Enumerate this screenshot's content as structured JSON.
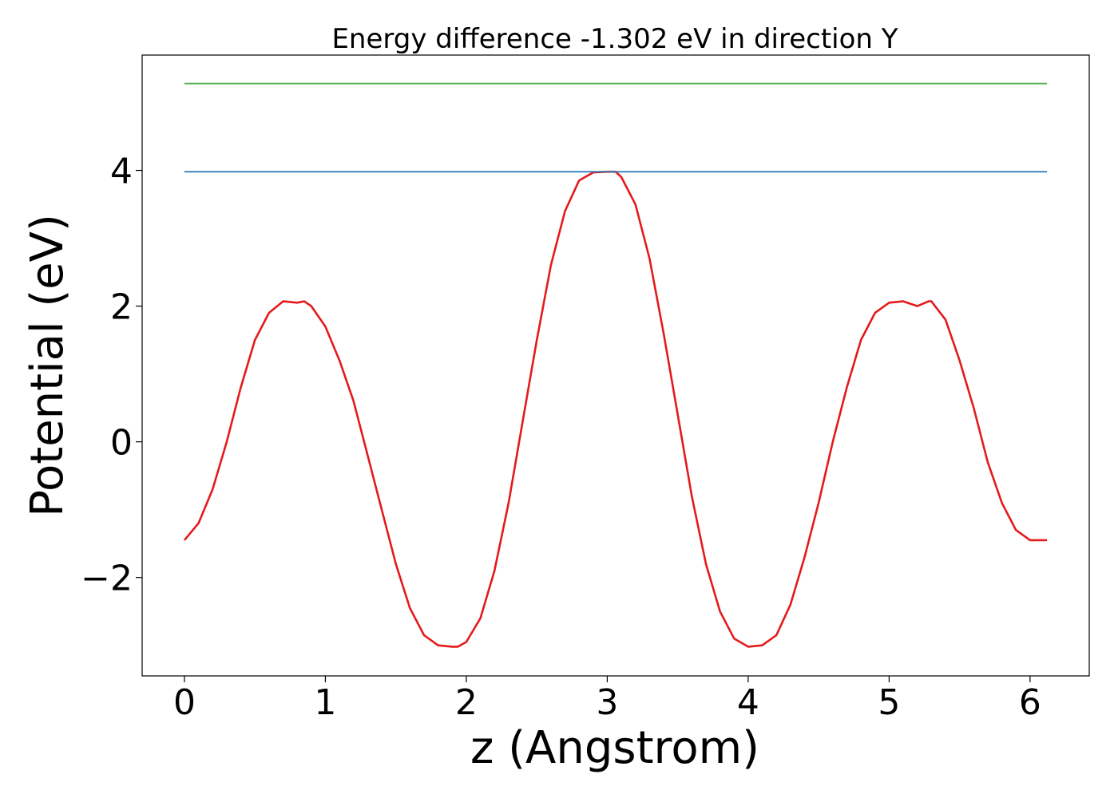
{
  "chart_data": {
    "type": "line",
    "title": "Energy difference -1.302 eV in direction Y",
    "xlabel": "z (Angstrom)",
    "ylabel": "Potential (eV)",
    "xlim": [
      -0.3,
      6.42
    ],
    "ylim": [
      -3.45,
      5.7
    ],
    "xticks": [
      0,
      1,
      2,
      3,
      4,
      5,
      6
    ],
    "xtick_labels": [
      "0",
      "1",
      "2",
      "3",
      "4",
      "5",
      "6"
    ],
    "yticks": [
      -2,
      0,
      2,
      4
    ],
    "ytick_labels": [
      "−2",
      "0",
      "2",
      "4"
    ],
    "grid": false,
    "legend": "none",
    "series": [
      {
        "color": "#e41a1c",
        "x": [
          0.0,
          0.1,
          0.2,
          0.3,
          0.4,
          0.5,
          0.6,
          0.7,
          0.8,
          0.85,
          0.9,
          1.0,
          1.1,
          1.2,
          1.3,
          1.4,
          1.5,
          1.6,
          1.7,
          1.8,
          1.9,
          1.94,
          2.0,
          2.1,
          2.2,
          2.3,
          2.4,
          2.5,
          2.6,
          2.7,
          2.8,
          2.9,
          3.0,
          3.06,
          3.1,
          3.2,
          3.3,
          3.4,
          3.5,
          3.6,
          3.7,
          3.8,
          3.9,
          4.0,
          4.1,
          4.2,
          4.3,
          4.4,
          4.5,
          4.6,
          4.7,
          4.8,
          4.9,
          5.0,
          5.1,
          5.2,
          5.28,
          5.3,
          5.4,
          5.5,
          5.6,
          5.7,
          5.8,
          5.9,
          6.0,
          6.12
        ],
        "y": [
          -1.45,
          -1.2,
          -0.7,
          0.0,
          0.8,
          1.5,
          1.9,
          2.07,
          2.05,
          2.07,
          2.0,
          1.7,
          1.2,
          0.6,
          -0.2,
          -1.0,
          -1.8,
          -2.45,
          -2.85,
          -3.0,
          -3.02,
          -3.02,
          -2.95,
          -2.6,
          -1.9,
          -0.9,
          0.3,
          1.5,
          2.6,
          3.4,
          3.85,
          3.97,
          3.98,
          3.98,
          3.9,
          3.5,
          2.7,
          1.6,
          0.4,
          -0.8,
          -1.8,
          -2.5,
          -2.9,
          -3.02,
          -3.0,
          -2.85,
          -2.4,
          -1.7,
          -0.9,
          0.0,
          0.8,
          1.5,
          1.9,
          2.05,
          2.07,
          2.0,
          2.07,
          2.07,
          1.8,
          1.2,
          0.5,
          -0.3,
          -0.9,
          -1.3,
          -1.45,
          -1.45
        ]
      },
      {
        "color": "#377eb8",
        "x": [
          0.0,
          6.12
        ],
        "y": [
          3.98,
          3.98
        ]
      },
      {
        "color": "#4daf4a",
        "x": [
          0.0,
          6.12
        ],
        "y": [
          5.28,
          5.28
        ]
      }
    ]
  }
}
